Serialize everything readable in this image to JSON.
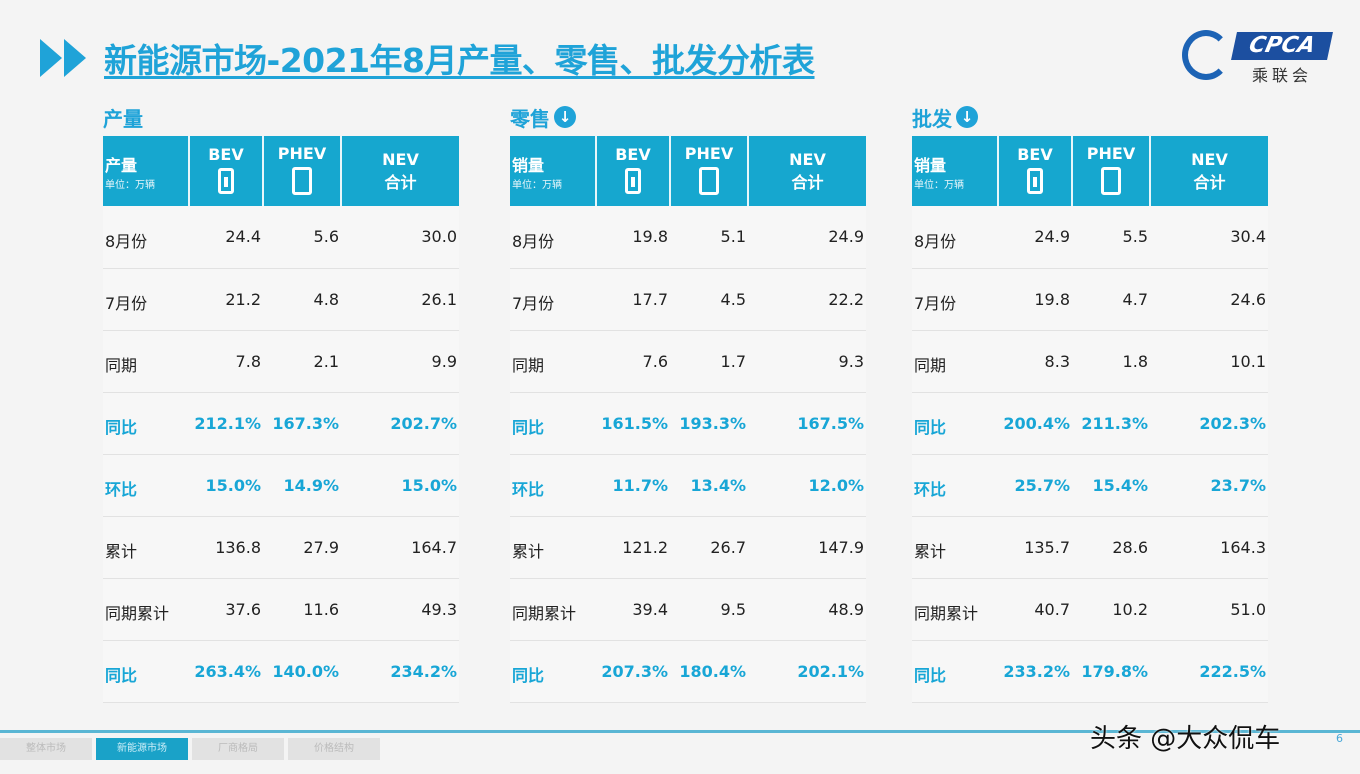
{
  "title": "新能源市场-2021年8月产量、零售、批发分析表",
  "logo": {
    "text": "CPCA",
    "cn": "乘联会"
  },
  "colors": {
    "accent": "#1fa3d8",
    "header": "#16a7cf"
  },
  "header": {
    "bev": "BEV",
    "phev": "PHEV",
    "nev": "NEV",
    "nev2": "合计",
    "unit": "单位：万辆"
  },
  "tables": [
    {
      "title": "产量",
      "label": "产量",
      "down_icon": false,
      "rows": [
        [
          "8月份",
          "24.4",
          "5.6",
          "30.0"
        ],
        [
          "7月份",
          "21.2",
          "4.8",
          "26.1"
        ],
        [
          "同期",
          "7.8",
          "2.1",
          "9.9"
        ],
        [
          "同比",
          "212.1%",
          "167.3%",
          "202.7%"
        ],
        [
          "环比",
          "15.0%",
          "14.9%",
          "15.0%"
        ],
        [
          "累计",
          "136.8",
          "27.9",
          "164.7"
        ],
        [
          "同期累计",
          "37.6",
          "11.6",
          "49.3"
        ],
        [
          "同比",
          "263.4%",
          "140.0%",
          "234.2%"
        ]
      ]
    },
    {
      "title": "零售",
      "label": "销量",
      "down_icon": true,
      "rows": [
        [
          "8月份",
          "19.8",
          "5.1",
          "24.9"
        ],
        [
          "7月份",
          "17.7",
          "4.5",
          "22.2"
        ],
        [
          "同期",
          "7.6",
          "1.7",
          "9.3"
        ],
        [
          "同比",
          "161.5%",
          "193.3%",
          "167.5%"
        ],
        [
          "环比",
          "11.7%",
          "13.4%",
          "12.0%"
        ],
        [
          "累计",
          "121.2",
          "26.7",
          "147.9"
        ],
        [
          "同期累计",
          "39.4",
          "9.5",
          "48.9"
        ],
        [
          "同比",
          "207.3%",
          "180.4%",
          "202.1%"
        ]
      ]
    },
    {
      "title": "批发",
      "label": "销量",
      "down_icon": true,
      "rows": [
        [
          "8月份",
          "24.9",
          "5.5",
          "30.4"
        ],
        [
          "7月份",
          "19.8",
          "4.7",
          "24.6"
        ],
        [
          "同期",
          "8.3",
          "1.8",
          "10.1"
        ],
        [
          "同比",
          "200.4%",
          "211.3%",
          "202.3%"
        ],
        [
          "环比",
          "25.7%",
          "15.4%",
          "23.7%"
        ],
        [
          "累计",
          "135.7",
          "28.6",
          "164.3"
        ],
        [
          "同期累计",
          "40.7",
          "10.2",
          "51.0"
        ],
        [
          "同比",
          "233.2%",
          "179.8%",
          "222.5%"
        ]
      ]
    }
  ],
  "highlight_rows": [
    3,
    4,
    7
  ],
  "footer": {
    "tabs": [
      "整体市场",
      "新能源市场",
      "厂商格局",
      "价格结构"
    ],
    "active_tab": 1,
    "watermark": "头条 @大众侃车",
    "page": "6"
  }
}
